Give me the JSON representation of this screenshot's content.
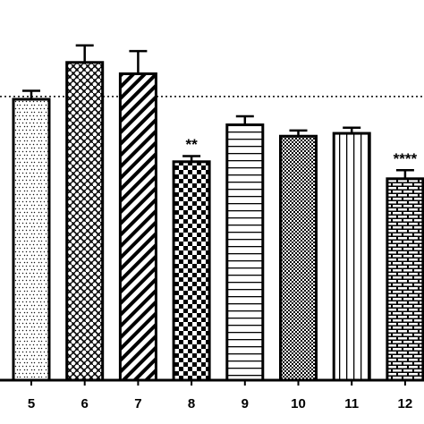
{
  "chart_data": {
    "type": "bar",
    "categories": [
      "5",
      "6",
      "7",
      "8",
      "9",
      "10",
      "11",
      "12"
    ],
    "values": [
      99,
      112,
      108,
      77,
      90,
      86,
      87,
      71
    ],
    "errors": [
      3,
      6,
      8,
      2,
      3,
      2,
      2,
      3
    ],
    "significance": [
      null,
      null,
      null,
      "**",
      null,
      null,
      null,
      "****"
    ],
    "reference_line": 100,
    "color": "#000000",
    "ylim": [
      0,
      134
    ]
  }
}
